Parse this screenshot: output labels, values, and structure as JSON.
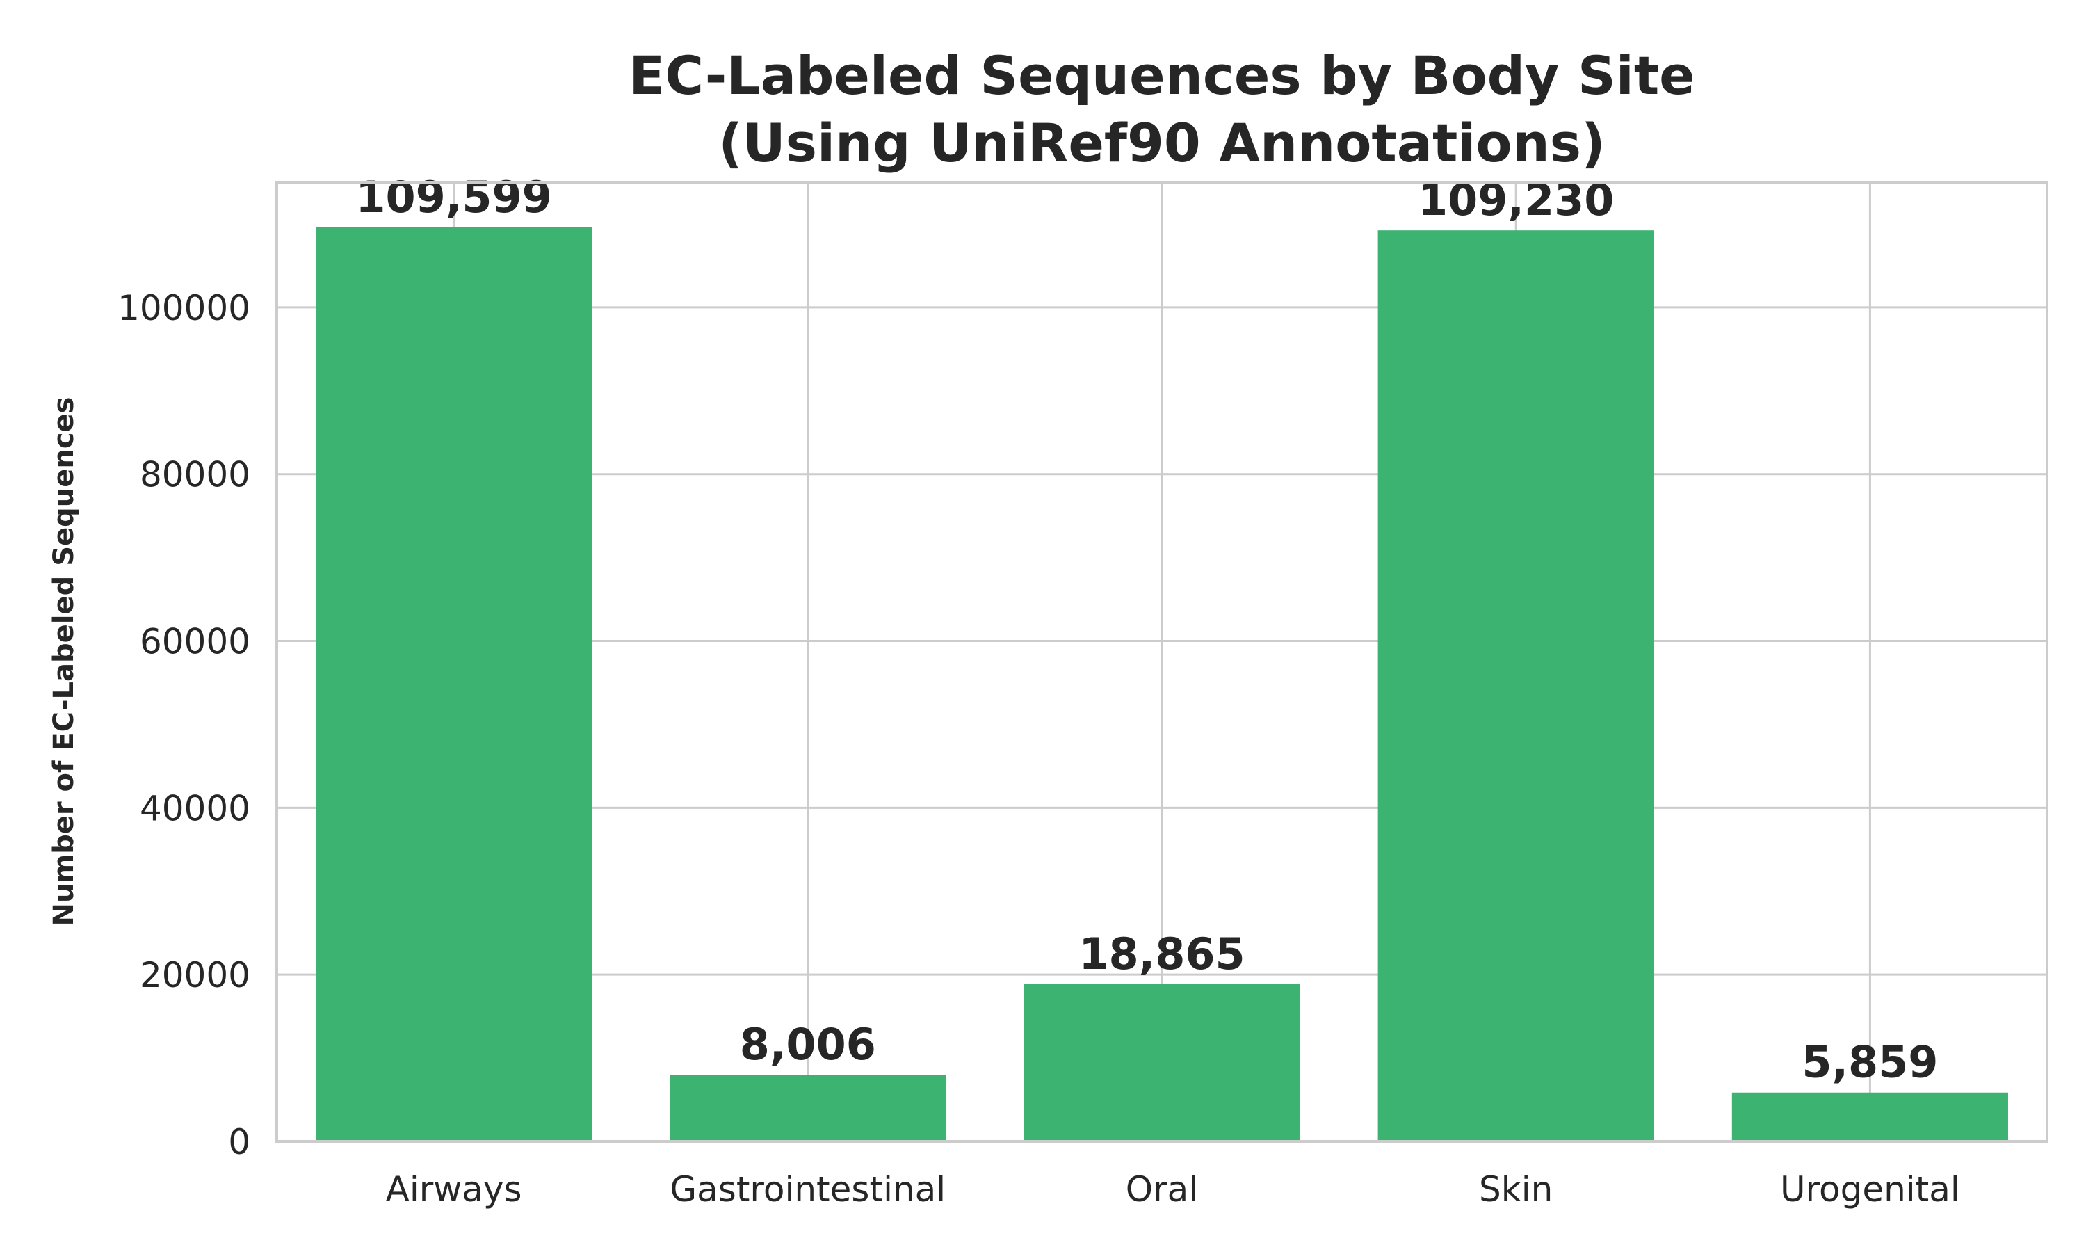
{
  "chart_data": {
    "type": "bar",
    "title": [
      "EC-Labeled Sequences by Body Site",
      "(Using UniRef90 Annotations)"
    ],
    "xlabel": "",
    "ylabel": "Number of EC-Labeled Sequences",
    "categories": [
      "Airways",
      "Gastrointestinal",
      "Oral",
      "Skin",
      "Urogenital"
    ],
    "values": [
      109599,
      8006,
      18865,
      109230,
      5859
    ],
    "data_labels": [
      "109,599",
      "8,006",
      "18,865",
      "109,230",
      "5,859"
    ],
    "ylim": [
      0,
      115000
    ],
    "yticks": [
      0,
      20000,
      40000,
      60000,
      80000,
      100000
    ],
    "ytick_labels": [
      "0",
      "20000",
      "40000",
      "60000",
      "80000",
      "100000"
    ],
    "grid": true,
    "bar_color": "#3cb371"
  }
}
